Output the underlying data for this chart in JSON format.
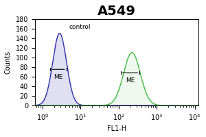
{
  "title": "A549",
  "xlabel": "FL1-H",
  "ylabel": "Counts",
  "xlim_log": [
    0,
    4
  ],
  "ylim": [
    0,
    180
  ],
  "yticks": [
    0,
    20,
    40,
    60,
    80,
    100,
    120,
    140,
    160,
    180
  ],
  "xtick_labels": [
    "10⁰",
    "10¹",
    "10²",
    "10³",
    "10⁴"
  ],
  "control_label": "control",
  "ME_left_label": "ME",
  "ME_right_label": "ME",
  "blue_color": "#3333aa",
  "green_color": "#44bb44",
  "background_color": "#ffffff",
  "blue_peak_log": 0.45,
  "blue_peak_height": 150,
  "blue_sigma_log": 0.18,
  "green_peak_log": 2.35,
  "green_peak_height": 110,
  "green_sigma_log": 0.22,
  "title_fontsize": 14,
  "axis_fontsize": 7,
  "label_fontsize": 6.5
}
